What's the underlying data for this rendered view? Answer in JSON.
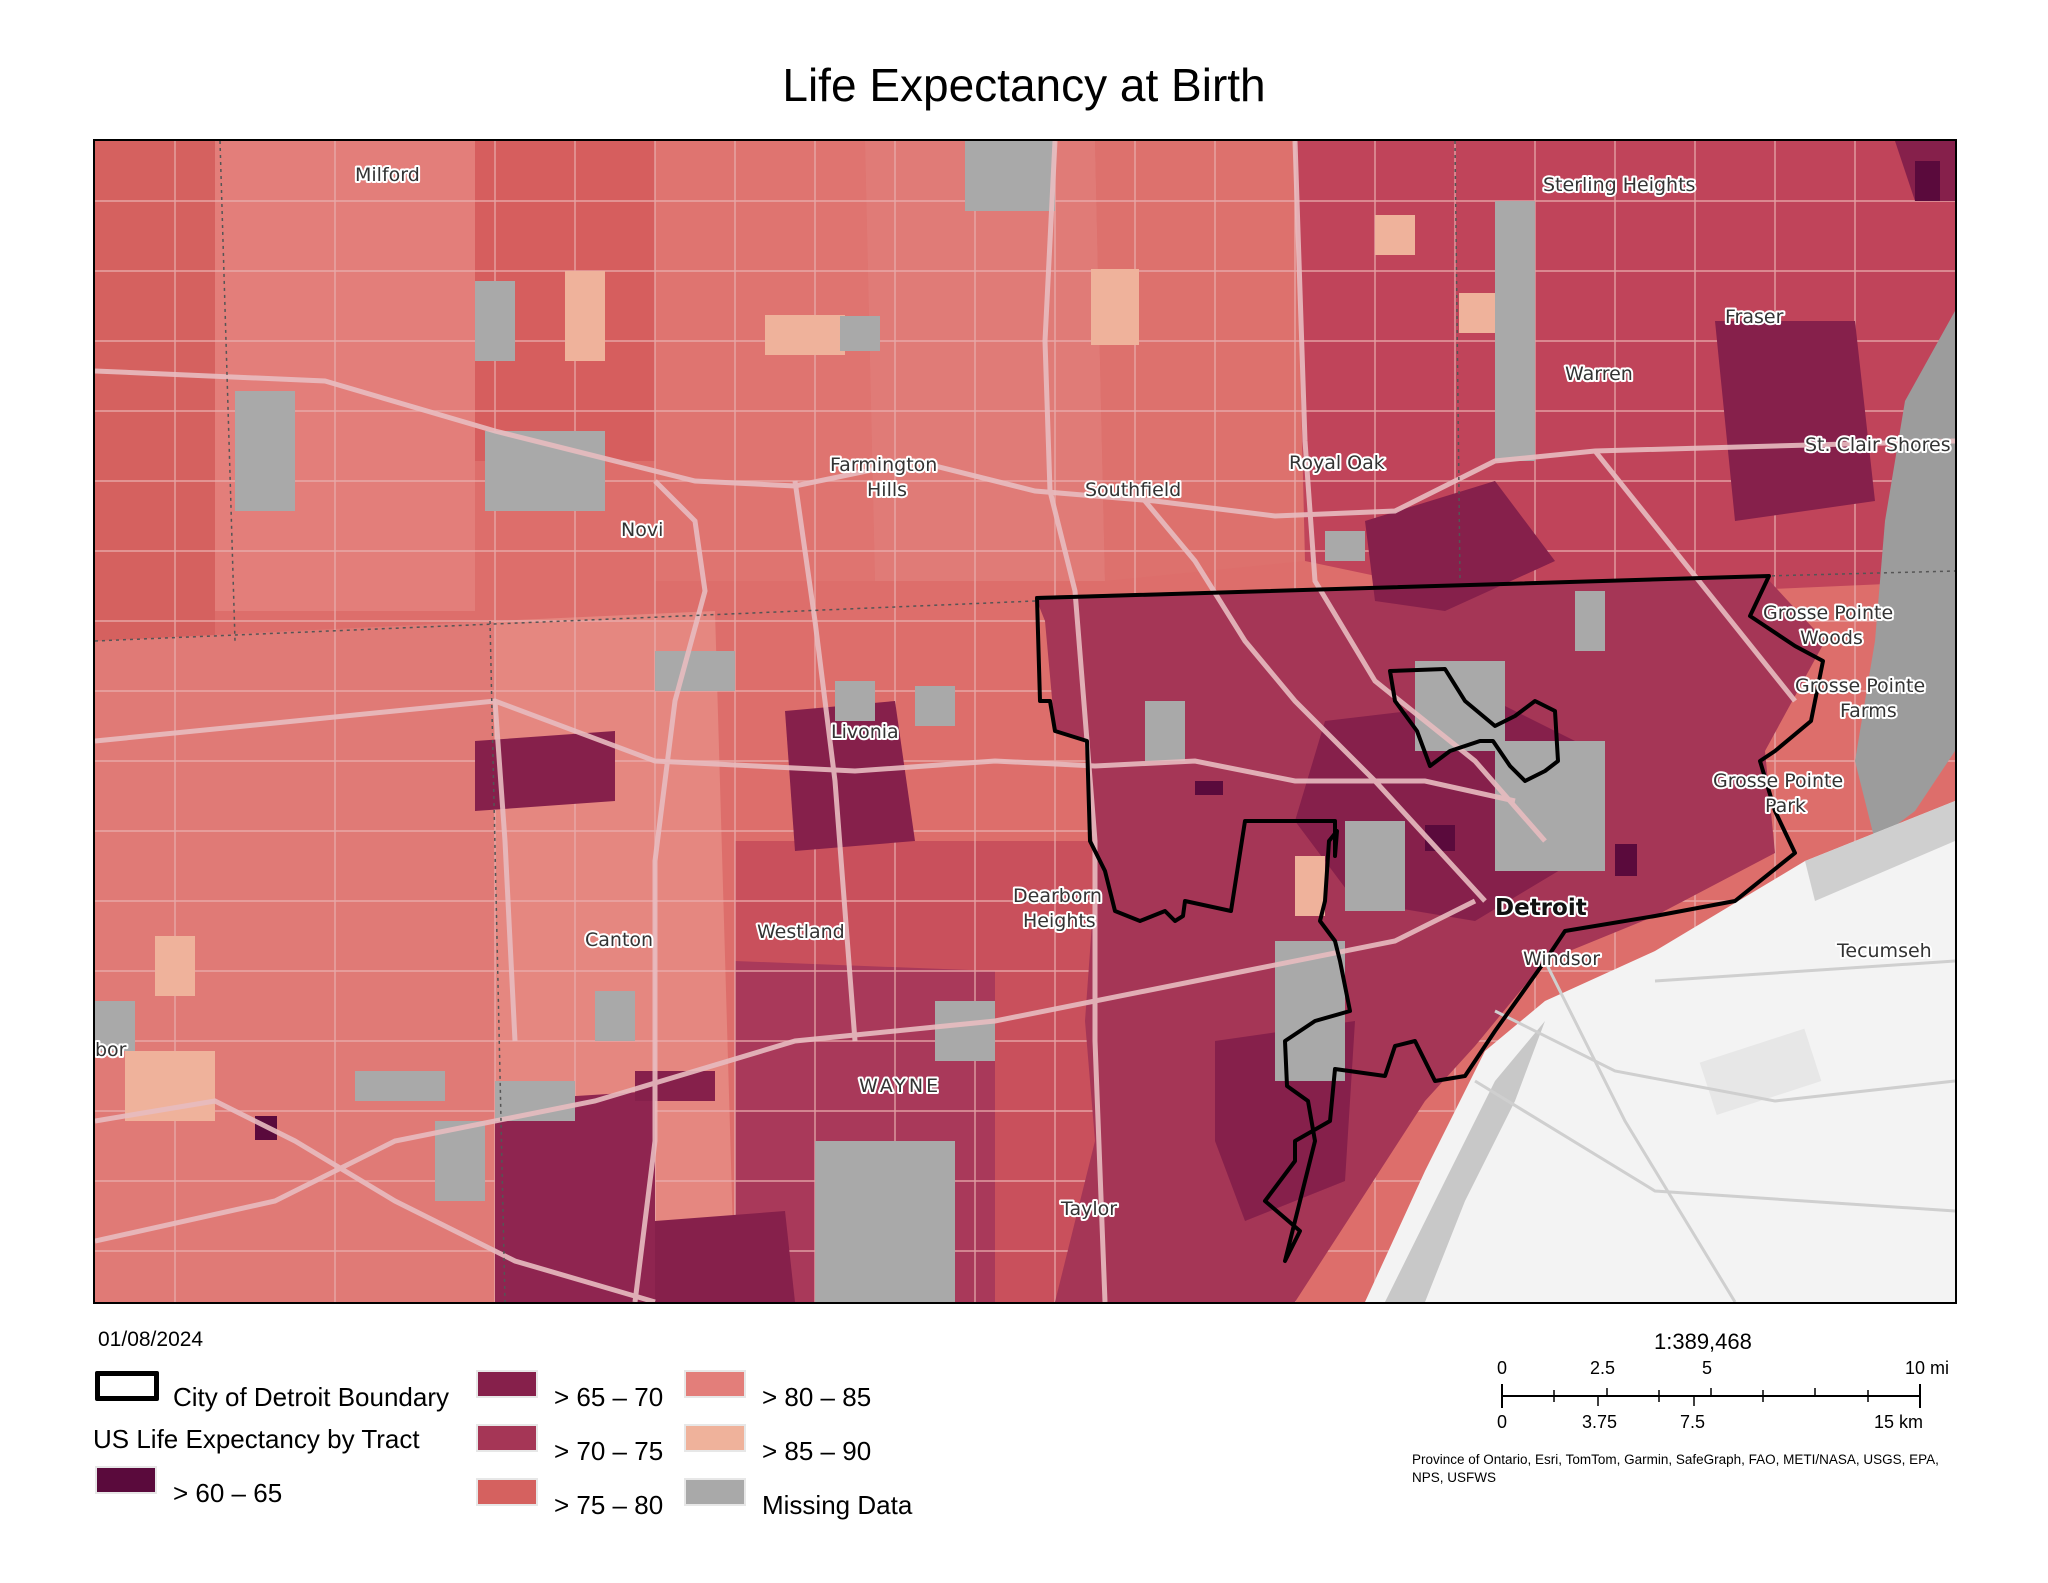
{
  "title": "Life Expectancy at Birth",
  "date": "01/08/2024",
  "colors": {
    "c60": "#5a0a3c",
    "c65": "#86204b",
    "c70": "#a53656",
    "c75": "#d5615f",
    "c80": "#e37e7a",
    "c85": "#efb29b",
    "missing": "#a9a9a9",
    "water": "#f2f2f2",
    "road": "#e6b5b8",
    "boundary": "#000000"
  },
  "places": [
    {
      "id": "milford",
      "label": "Milford"
    },
    {
      "id": "sterling-heights",
      "label": "Sterling Heights"
    },
    {
      "id": "fraser",
      "label": "Fraser"
    },
    {
      "id": "warren",
      "label": "Warren"
    },
    {
      "id": "st-clair-shores",
      "label": "St. Clair Shores"
    },
    {
      "id": "farmington-hills-1",
      "label": "Farmington"
    },
    {
      "id": "farmington-hills-2",
      "label": "Hills"
    },
    {
      "id": "southfield",
      "label": "Southfield"
    },
    {
      "id": "royal-oak",
      "label": "Royal Oak"
    },
    {
      "id": "novi",
      "label": "Novi"
    },
    {
      "id": "grosse-pointe-woods-1",
      "label": "Grosse Pointe"
    },
    {
      "id": "grosse-pointe-woods-2",
      "label": "Woods"
    },
    {
      "id": "grosse-pointe-farms-1",
      "label": "Grosse Pointe"
    },
    {
      "id": "grosse-pointe-farms-2",
      "label": "Farms"
    },
    {
      "id": "livonia",
      "label": "Livonia"
    },
    {
      "id": "grosse-pointe-park-1",
      "label": "Grosse Pointe"
    },
    {
      "id": "grosse-pointe-park-2",
      "label": "Park"
    },
    {
      "id": "dearborn-heights-1",
      "label": "Dearborn"
    },
    {
      "id": "dearborn-heights-2",
      "label": "Heights"
    },
    {
      "id": "detroit",
      "label": "Detroit"
    },
    {
      "id": "canton",
      "label": "Canton"
    },
    {
      "id": "westland",
      "label": "Westland"
    },
    {
      "id": "windsor",
      "label": "Windsor"
    },
    {
      "id": "tecumseh",
      "label": "Tecumseh"
    },
    {
      "id": "arbor",
      "label": "bor"
    },
    {
      "id": "wayne",
      "label": "WAYNE"
    },
    {
      "id": "taylor",
      "label": "Taylor"
    }
  ],
  "legend": {
    "boundary_label": "City of Detroit Boundary",
    "heading": "US Life Expectancy by Tract",
    "classes": [
      {
        "label": "> 60 – 65",
        "color": "#5a0a3c"
      },
      {
        "label": "> 65 – 70",
        "color": "#86204b"
      },
      {
        "label": "> 70 – 75",
        "color": "#a53656"
      },
      {
        "label": "> 75 – 80",
        "color": "#d5615f"
      },
      {
        "label": "> 80 – 85",
        "color": "#e37e7a"
      },
      {
        "label": "> 85 – 90",
        "color": "#efb29b"
      },
      {
        "label": "Missing Data",
        "color": "#a9a9a9"
      }
    ]
  },
  "scale": {
    "ratio": "1:389,468",
    "miles": [
      "0",
      "2.5",
      "5",
      "10 mi"
    ],
    "km": [
      "0",
      "3.75",
      "7.5",
      "15 km"
    ]
  },
  "credits": "Province of Ontario, Esri, TomTom, Garmin, SafeGraph, FAO, METI/NASA, USGS, EPA, NPS, USFWS"
}
